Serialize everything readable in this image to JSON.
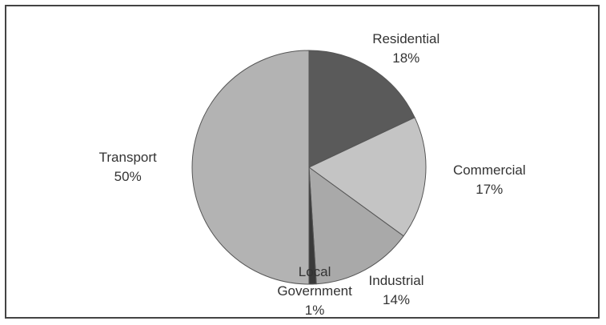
{
  "chart_data": {
    "type": "pie",
    "categories": [
      "Residential",
      "Commercial",
      "Industrial",
      "Local Government",
      "Transport"
    ],
    "values": [
      18,
      17,
      14,
      1,
      50
    ],
    "value_labels": [
      "18%",
      "17%",
      "14%",
      "1%",
      "50%"
    ],
    "colors": [
      "#5a5a5a",
      "#c4c4c4",
      "#a9a9a9",
      "#3a3a3a",
      "#b3b3b3"
    ]
  }
}
